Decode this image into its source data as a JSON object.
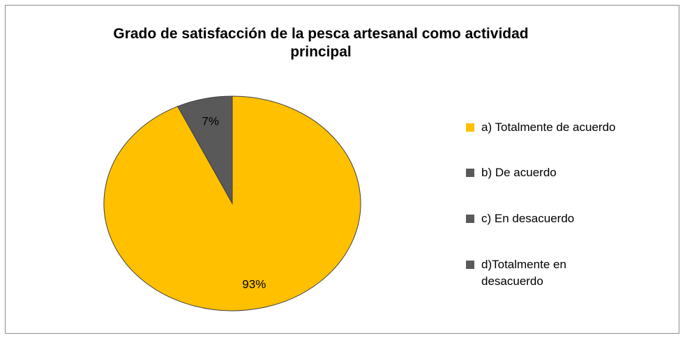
{
  "chart_data": {
    "type": "pie",
    "title": "Grado de satisfacción de la pesca artesanal como actividad principal",
    "categories": [
      "a) Totalmente de acuerdo",
      "b) De acuerdo",
      "c) En desacuerdo",
      "d)Totalmente en desacuerdo"
    ],
    "values": [
      93,
      7,
      0,
      0
    ],
    "value_labels": [
      "93%",
      "7%",
      null,
      null
    ],
    "colors": [
      "#FFC000",
      "#595959",
      "#595959",
      "#595959"
    ],
    "legend": "right"
  }
}
